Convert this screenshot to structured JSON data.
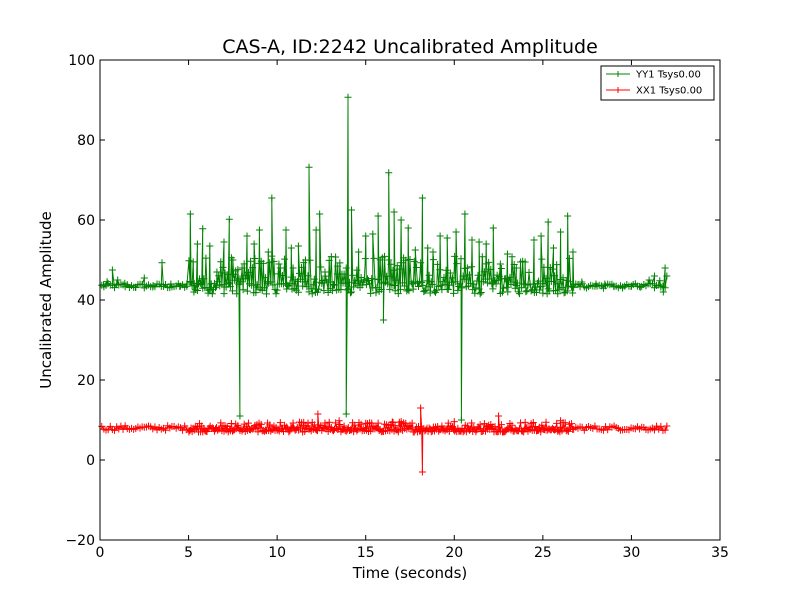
{
  "chart_data": {
    "type": "line",
    "title": "CAS-A, ID:2242 Uncalibrated Amplitude",
    "xlabel": "Time (seconds)",
    "ylabel": "Uncalibrated Amplitude",
    "xlim": [
      0,
      35
    ],
    "ylim": [
      -20,
      100
    ],
    "x_ticks": [
      "0",
      "5",
      "10",
      "15",
      "20",
      "25",
      "30",
      "35"
    ],
    "y_ticks": [
      "−20",
      "0",
      "20",
      "40",
      "60",
      "80",
      "100"
    ],
    "grid": false,
    "legend_position": "top-right",
    "marker": "plus",
    "series": [
      {
        "name": "YY1 Tsys0.00",
        "color": "#008000",
        "baseline": 43.5,
        "active_range": [
          5.0,
          26.7
        ],
        "active_band": [
          41.5,
          51
        ],
        "points": [
          [
            0.2,
            43.8
          ],
          [
            0.4,
            44.6
          ],
          [
            0.7,
            47.5
          ],
          [
            1.0,
            45.0
          ],
          [
            1.4,
            44.2
          ],
          [
            2.0,
            43.2
          ],
          [
            2.5,
            45.5
          ],
          [
            3.0,
            43.6
          ],
          [
            3.5,
            49.3
          ],
          [
            4.0,
            44.0
          ],
          [
            4.5,
            43.4
          ],
          [
            4.9,
            44.0
          ],
          [
            5.1,
            61.5
          ],
          [
            5.3,
            42.0
          ],
          [
            5.5,
            54.0
          ],
          [
            5.8,
            57.8
          ],
          [
            6.2,
            53.5
          ],
          [
            6.6,
            47.0
          ],
          [
            7.0,
            54.5
          ],
          [
            7.3,
            60.2
          ],
          [
            7.5,
            50.0
          ],
          [
            7.9,
            11.0
          ],
          [
            8.3,
            56.0
          ],
          [
            8.7,
            54.0
          ],
          [
            9.0,
            57.5
          ],
          [
            9.5,
            52.0
          ],
          [
            9.7,
            65.5
          ],
          [
            10.1,
            49.0
          ],
          [
            10.5,
            57.5
          ],
          [
            10.8,
            53.0
          ],
          [
            11.2,
            53.5
          ],
          [
            11.6,
            50.0
          ],
          [
            11.8,
            73.2
          ],
          [
            12.2,
            57.5
          ],
          [
            12.4,
            61.5
          ],
          [
            12.7,
            47.0
          ],
          [
            13.0,
            44.5
          ],
          [
            13.4,
            46.5
          ],
          [
            13.9,
            11.5
          ],
          [
            14.0,
            90.7
          ],
          [
            14.2,
            62.5
          ],
          [
            14.6,
            52.0
          ],
          [
            15.0,
            56.0
          ],
          [
            15.4,
            56.5
          ],
          [
            15.7,
            61.0
          ],
          [
            16.0,
            35.0
          ],
          [
            16.3,
            71.8
          ],
          [
            16.6,
            62.0
          ],
          [
            17.0,
            60.0
          ],
          [
            17.4,
            58.0
          ],
          [
            17.8,
            52.5
          ],
          [
            18.2,
            65.5
          ],
          [
            18.5,
            53.0
          ],
          [
            18.8,
            52.0
          ],
          [
            19.2,
            56.0
          ],
          [
            19.6,
            55.5
          ],
          [
            20.1,
            57.0
          ],
          [
            20.4,
            10.0
          ],
          [
            20.6,
            61.5
          ],
          [
            21.0,
            55.0
          ],
          [
            21.4,
            54.5
          ],
          [
            21.8,
            54.0
          ],
          [
            22.2,
            58.0
          ],
          [
            22.6,
            49.0
          ],
          [
            23.0,
            51.5
          ],
          [
            23.5,
            48.0
          ],
          [
            24.0,
            49.5
          ],
          [
            24.5,
            55.0
          ],
          [
            24.9,
            56.0
          ],
          [
            25.3,
            59.5
          ],
          [
            25.6,
            53.0
          ],
          [
            26.0,
            57.0
          ],
          [
            26.4,
            61.0
          ],
          [
            26.7,
            52.0
          ],
          [
            27.2,
            44.5
          ],
          [
            28.0,
            44.0
          ],
          [
            28.5,
            44.0
          ],
          [
            29.0,
            43.5
          ],
          [
            29.5,
            43.0
          ],
          [
            30.0,
            43.5
          ],
          [
            30.5,
            43.2
          ],
          [
            31.0,
            45.0
          ],
          [
            31.3,
            46.0
          ],
          [
            31.6,
            44.8
          ],
          [
            31.8,
            42.0
          ],
          [
            31.9,
            48.0
          ],
          [
            32.0,
            46.0
          ]
        ]
      },
      {
        "name": "XX1 Tsys0.00",
        "color": "#ff0000",
        "baseline": 8.0,
        "active_range": [
          5.0,
          26.7
        ],
        "active_band": [
          7.0,
          9.5
        ],
        "points": [
          [
            12.3,
            11.5
          ],
          [
            13.5,
            9.8
          ],
          [
            15.0,
            9.2
          ],
          [
            16.5,
            9.5
          ],
          [
            17.0,
            9.6
          ],
          [
            18.1,
            13.0
          ],
          [
            18.2,
            -3.0
          ],
          [
            20.0,
            9.6
          ],
          [
            22.5,
            11.0
          ],
          [
            24.0,
            9.4
          ],
          [
            26.0,
            9.8
          ],
          [
            32.0,
            8.5
          ]
        ]
      }
    ]
  }
}
